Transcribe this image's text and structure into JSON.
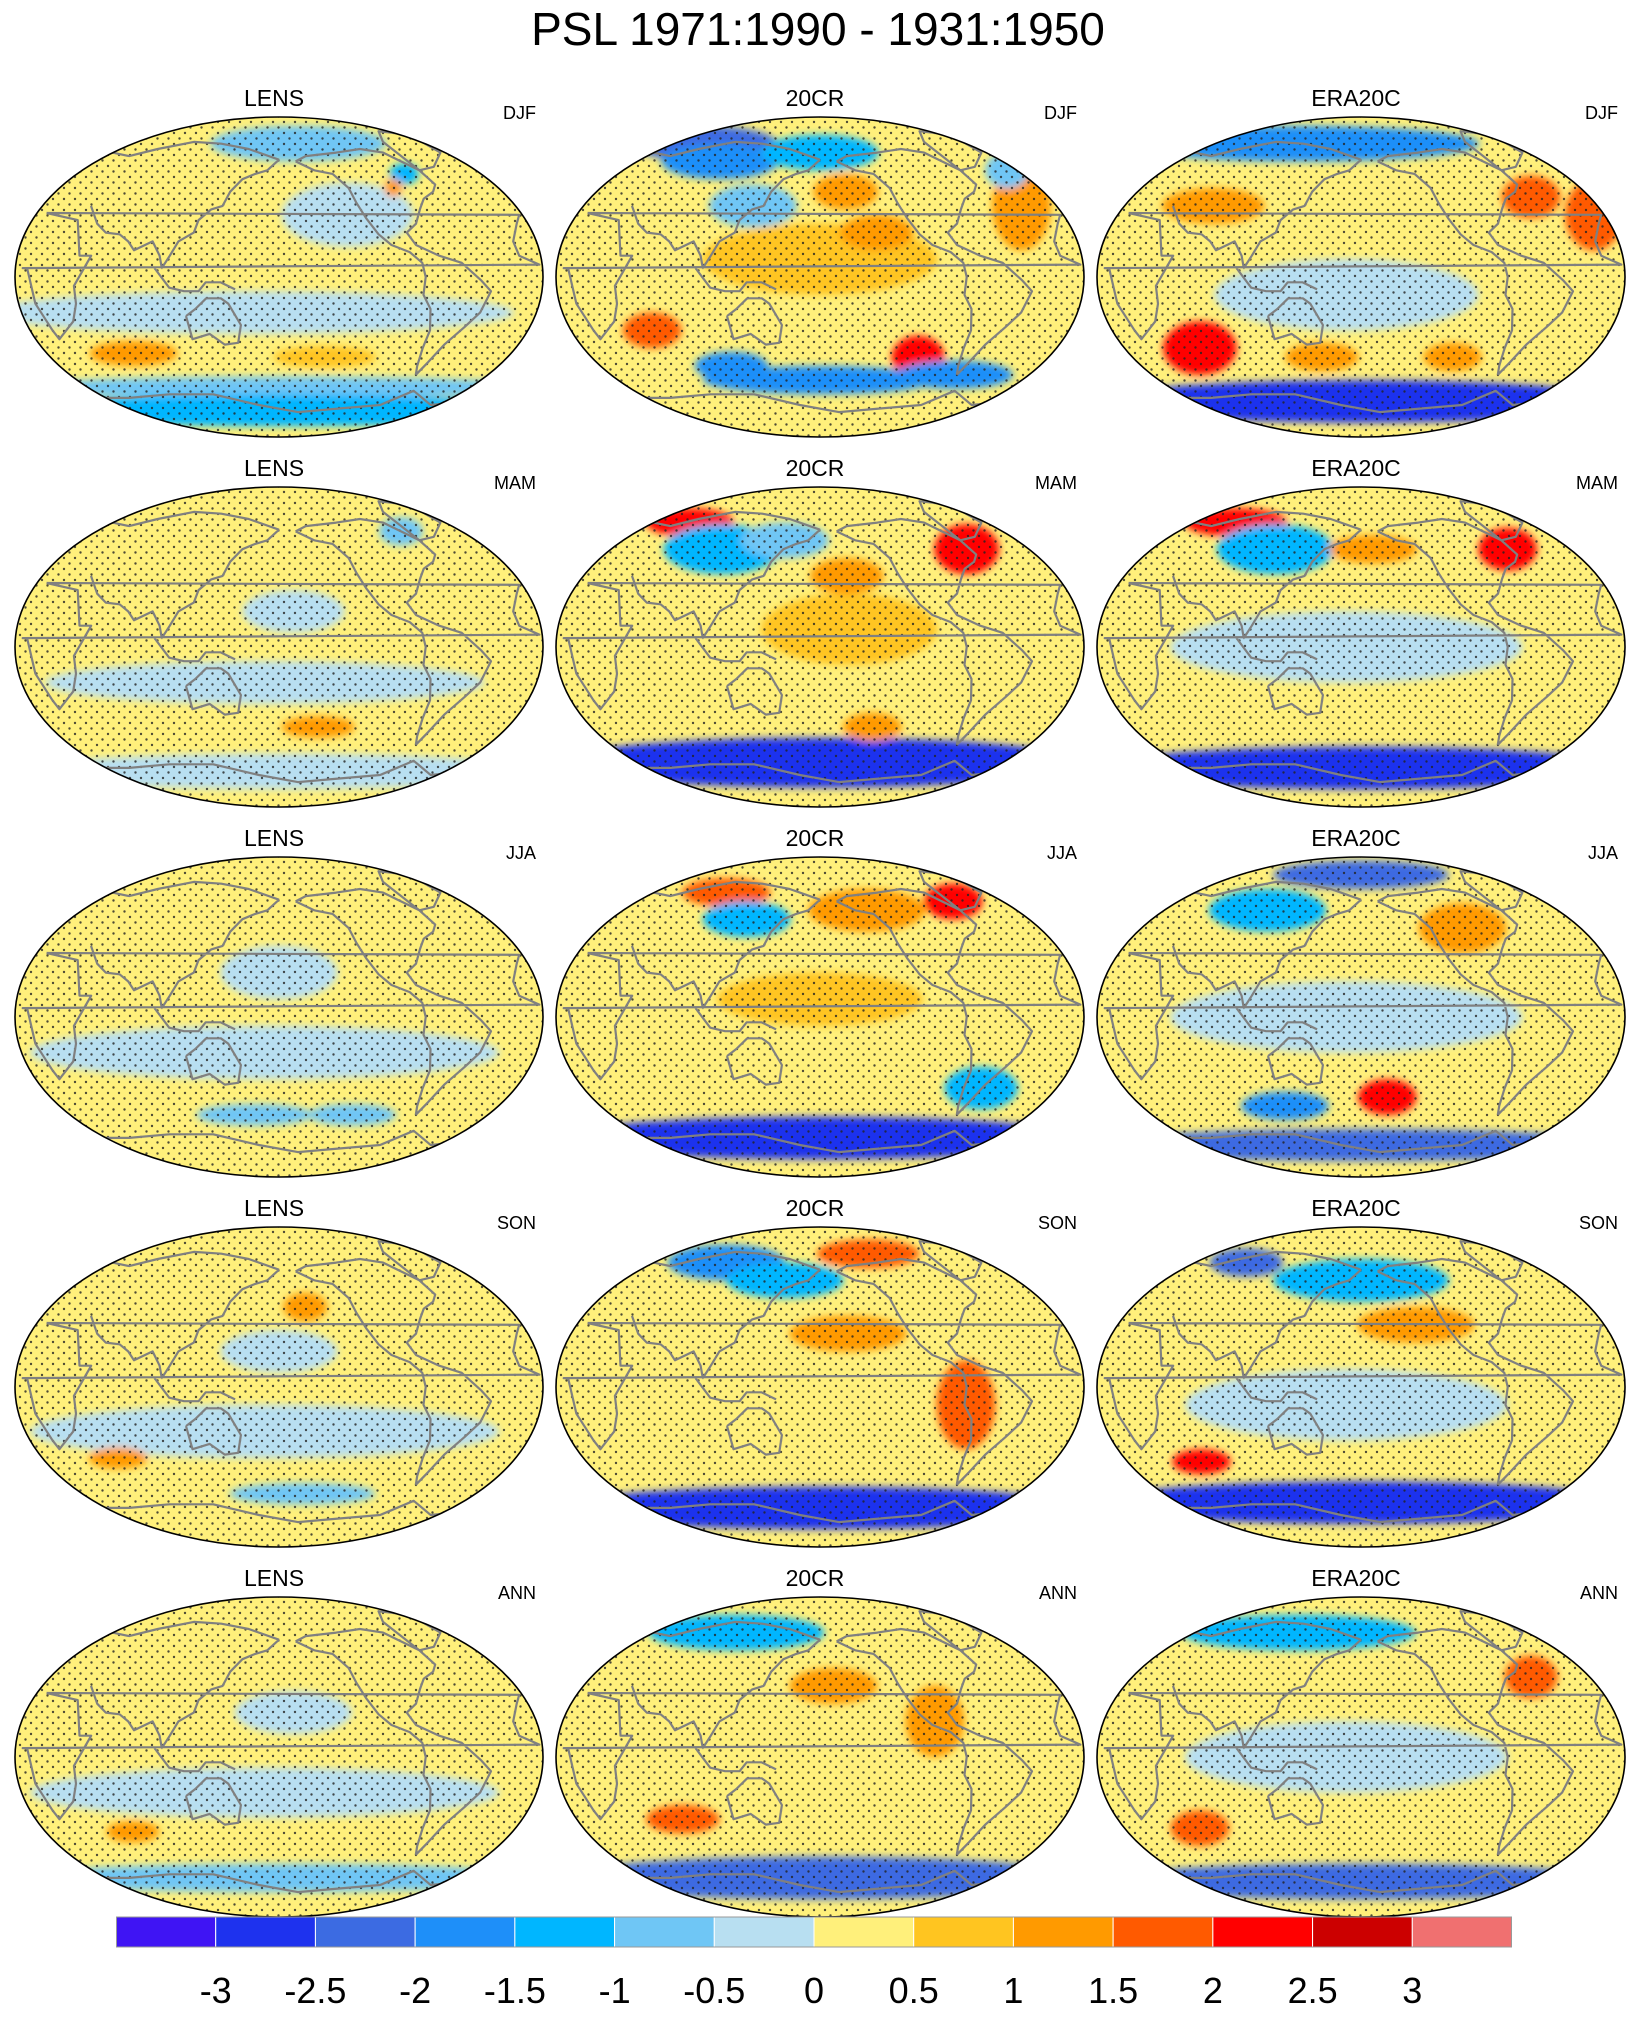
{
  "figure": {
    "title": "PSL 1971:1990 - 1931:1950"
  },
  "chart_data": {
    "type": "heatmap",
    "projection": "Robinson (global, Pacific-centered)",
    "title": "PSL 1971:1990 - 1931:1950",
    "rows": [
      "DJF",
      "MAM",
      "JJA",
      "SON",
      "ANN"
    ],
    "columns": [
      "LENS",
      "20CR",
      "ERA20C"
    ],
    "stippling": "dots over shaded field",
    "coastlines_color": "#808080",
    "colorbar": {
      "levels": [
        -3,
        -2.5,
        -2,
        -1.5,
        -1,
        -0.5,
        0,
        0.5,
        1,
        1.5,
        2,
        2.5,
        3
      ],
      "tick_labels": [
        "-3",
        "-2.5",
        "-2",
        "-1.5",
        "-1",
        "-0.5",
        "0",
        "0.5",
        "1",
        "1.5",
        "2",
        "2.5",
        "3"
      ],
      "colors": [
        "#3f14f4",
        "#1e32ee",
        "#3c6be2",
        "#1e8ff9",
        "#00b6ff",
        "#6fc6f5",
        "#b8dff1",
        "#fff07b",
        "#ffc520",
        "#ff9a00",
        "#ff5a00",
        "#ff0000",
        "#cc0000",
        "#f07070"
      ]
    },
    "panels": [
      {
        "row": "DJF",
        "model": "LENS",
        "features": [
          {
            "lon": 200,
            "lat": 75,
            "rx": 60,
            "ry": 10,
            "value": -0.6
          },
          {
            "lon": 230,
            "lat": 35,
            "rx": 45,
            "ry": 18,
            "value": -0.5
          },
          {
            "lon": 160,
            "lat": -20,
            "rx": 180,
            "ry": 12,
            "value": -0.5
          },
          {
            "lon": 70,
            "lat": -43,
            "rx": 30,
            "ry": 7,
            "value": 1.3
          },
          {
            "lon": 215,
            "lat": -45,
            "rx": 35,
            "ry": 6,
            "value": 0.9
          },
          {
            "lon": 180,
            "lat": -62,
            "rx": 180,
            "ry": 6,
            "value": -0.8
          },
          {
            "lon": 180,
            "lat": -75,
            "rx": 180,
            "ry": 9,
            "value": -1.2
          },
          {
            "lon": 285,
            "lat": 58,
            "rx": 10,
            "ry": 6,
            "value": -1.3
          },
          {
            "lon": 270,
            "lat": 50,
            "rx": 6,
            "ry": 5,
            "value": 1.3
          }
        ]
      },
      {
        "row": "DJF",
        "model": "20CR",
        "features": [
          {
            "lon": 60,
            "lat": 75,
            "rx": 50,
            "ry": 10,
            "value": -2.2
          },
          {
            "lon": 90,
            "lat": 65,
            "rx": 40,
            "ry": 10,
            "value": -1.8
          },
          {
            "lon": 180,
            "lat": 70,
            "rx": 40,
            "ry": 10,
            "value": -1.5
          },
          {
            "lon": 130,
            "lat": 40,
            "rx": 30,
            "ry": 12,
            "value": -1.0
          },
          {
            "lon": 200,
            "lat": 48,
            "rx": 22,
            "ry": 10,
            "value": 1.3
          },
          {
            "lon": 180,
            "lat": 10,
            "rx": 80,
            "ry": 20,
            "value": 0.9
          },
          {
            "lon": 220,
            "lat": 25,
            "rx": 25,
            "ry": 10,
            "value": 1.3
          },
          {
            "lon": 330,
            "lat": 40,
            "rx": 20,
            "ry": 25,
            "value": 1.4
          },
          {
            "lon": 340,
            "lat": 60,
            "rx": 15,
            "ry": 10,
            "value": -1.0
          },
          {
            "lon": 60,
            "lat": -30,
            "rx": 20,
            "ry": 10,
            "value": 1.6
          },
          {
            "lon": 255,
            "lat": -45,
            "rx": 18,
            "ry": 12,
            "value": 2.2
          },
          {
            "lon": 180,
            "lat": -58,
            "rx": 80,
            "ry": 8,
            "value": -1.8
          },
          {
            "lon": 110,
            "lat": -50,
            "rx": 25,
            "ry": 8,
            "value": -2.0
          },
          {
            "lon": 290,
            "lat": -55,
            "rx": 40,
            "ry": 8,
            "value": -1.8
          }
        ]
      },
      {
        "row": "DJF",
        "model": "ERA20C",
        "features": [
          {
            "lon": 120,
            "lat": 75,
            "rx": 120,
            "ry": 10,
            "value": -1.8
          },
          {
            "lon": 70,
            "lat": 40,
            "rx": 35,
            "ry": 10,
            "value": 1.2
          },
          {
            "lon": 310,
            "lat": 45,
            "rx": 20,
            "ry": 12,
            "value": 1.6
          },
          {
            "lon": 350,
            "lat": 35,
            "rx": 20,
            "ry": 20,
            "value": 1.5
          },
          {
            "lon": 170,
            "lat": -10,
            "rx": 90,
            "ry": 20,
            "value": -0.5
          },
          {
            "lon": 60,
            "lat": -40,
            "rx": 25,
            "ry": 15,
            "value": 2.4
          },
          {
            "lon": 150,
            "lat": -45,
            "rx": 25,
            "ry": 8,
            "value": 1.2
          },
          {
            "lon": 250,
            "lat": -45,
            "rx": 20,
            "ry": 8,
            "value": 1.2
          },
          {
            "lon": 180,
            "lat": -70,
            "rx": 180,
            "ry": 12,
            "value": -2.8
          }
        ]
      },
      {
        "row": "MAM",
        "model": "LENS",
        "features": [
          {
            "lon": 190,
            "lat": 20,
            "rx": 35,
            "ry": 12,
            "value": -0.5
          },
          {
            "lon": 170,
            "lat": -20,
            "rx": 150,
            "ry": 12,
            "value": -0.5
          },
          {
            "lon": 210,
            "lat": -45,
            "rx": 25,
            "ry": 6,
            "value": 1.2
          },
          {
            "lon": 180,
            "lat": -70,
            "rx": 180,
            "ry": 10,
            "value": -0.5
          },
          {
            "lon": 290,
            "lat": 65,
            "rx": 15,
            "ry": 8,
            "value": -1.0
          }
        ]
      },
      {
        "row": "MAM",
        "model": "20CR",
        "features": [
          {
            "lon": 55,
            "lat": 70,
            "rx": 30,
            "ry": 8,
            "value": 2.0
          },
          {
            "lon": 100,
            "lat": 55,
            "rx": 40,
            "ry": 14,
            "value": -1.5
          },
          {
            "lon": 150,
            "lat": 60,
            "rx": 30,
            "ry": 10,
            "value": -1.0
          },
          {
            "lon": 300,
            "lat": 55,
            "rx": 22,
            "ry": 14,
            "value": 2.3
          },
          {
            "lon": 200,
            "lat": 40,
            "rx": 25,
            "ry": 10,
            "value": 1.2
          },
          {
            "lon": 200,
            "lat": 10,
            "rx": 60,
            "ry": 20,
            "value": 0.8
          },
          {
            "lon": 180,
            "lat": -65,
            "rx": 180,
            "ry": 14,
            "value": -2.8
          },
          {
            "lon": 220,
            "lat": -45,
            "rx": 20,
            "ry": 8,
            "value": 1.4
          }
        ]
      },
      {
        "row": "MAM",
        "model": "ERA20C",
        "features": [
          {
            "lon": 60,
            "lat": 70,
            "rx": 35,
            "ry": 8,
            "value": 2.0
          },
          {
            "lon": 110,
            "lat": 55,
            "rx": 40,
            "ry": 14,
            "value": -1.5
          },
          {
            "lon": 190,
            "lat": 55,
            "rx": 30,
            "ry": 8,
            "value": 1.3
          },
          {
            "lon": 300,
            "lat": 55,
            "rx": 20,
            "ry": 12,
            "value": 2.2
          },
          {
            "lon": 170,
            "lat": 0,
            "rx": 120,
            "ry": 20,
            "value": -0.5
          },
          {
            "lon": 180,
            "lat": -68,
            "rx": 180,
            "ry": 12,
            "value": -2.8
          }
        ]
      },
      {
        "row": "JJA",
        "model": "LENS",
        "features": [
          {
            "lon": 180,
            "lat": 25,
            "rx": 40,
            "ry": 15,
            "value": -0.5
          },
          {
            "lon": 170,
            "lat": -20,
            "rx": 160,
            "ry": 15,
            "value": -0.5
          },
          {
            "lon": 160,
            "lat": -55,
            "rx": 40,
            "ry": 6,
            "value": -0.8
          },
          {
            "lon": 240,
            "lat": -55,
            "rx": 30,
            "ry": 6,
            "value": -0.8
          }
        ]
      },
      {
        "row": "JJA",
        "model": "20CR",
        "features": [
          {
            "lon": 90,
            "lat": 70,
            "rx": 30,
            "ry": 8,
            "value": 1.5
          },
          {
            "lon": 220,
            "lat": 60,
            "rx": 40,
            "ry": 12,
            "value": 1.3
          },
          {
            "lon": 300,
            "lat": 65,
            "rx": 20,
            "ry": 10,
            "value": 2.2
          },
          {
            "lon": 120,
            "lat": 55,
            "rx": 30,
            "ry": 10,
            "value": -1.2
          },
          {
            "lon": 180,
            "lat": 10,
            "rx": 70,
            "ry": 15,
            "value": 0.6
          },
          {
            "lon": 180,
            "lat": -68,
            "rx": 180,
            "ry": 12,
            "value": -2.8
          },
          {
            "lon": 300,
            "lat": -40,
            "rx": 25,
            "ry": 12,
            "value": -1.2
          }
        ]
      },
      {
        "row": "JJA",
        "model": "ERA20C",
        "features": [
          {
            "lon": 180,
            "lat": 80,
            "rx": 60,
            "ry": 8,
            "value": -2.5
          },
          {
            "lon": 100,
            "lat": 60,
            "rx": 40,
            "ry": 12,
            "value": -1.5
          },
          {
            "lon": 260,
            "lat": 50,
            "rx": 30,
            "ry": 14,
            "value": 1.2
          },
          {
            "lon": 170,
            "lat": 0,
            "rx": 120,
            "ry": 20,
            "value": -0.5
          },
          {
            "lon": 200,
            "lat": -45,
            "rx": 20,
            "ry": 10,
            "value": 2.3
          },
          {
            "lon": 120,
            "lat": -50,
            "rx": 30,
            "ry": 8,
            "value": -1.8
          },
          {
            "lon": 180,
            "lat": -72,
            "rx": 180,
            "ry": 9,
            "value": -2.3
          }
        ]
      },
      {
        "row": "SON",
        "model": "LENS",
        "features": [
          {
            "lon": 200,
            "lat": 45,
            "rx": 15,
            "ry": 8,
            "value": 1.2
          },
          {
            "lon": 180,
            "lat": 20,
            "rx": 40,
            "ry": 12,
            "value": -0.5
          },
          {
            "lon": 170,
            "lat": -25,
            "rx": 160,
            "ry": 15,
            "value": -0.5
          },
          {
            "lon": 60,
            "lat": -40,
            "rx": 20,
            "ry": 6,
            "value": 1.3
          },
          {
            "lon": 200,
            "lat": -60,
            "rx": 50,
            "ry": 6,
            "value": -0.8
          }
        ]
      },
      {
        "row": "SON",
        "model": "20CR",
        "features": [
          {
            "lon": 90,
            "lat": 70,
            "rx": 40,
            "ry": 10,
            "value": -1.6
          },
          {
            "lon": 230,
            "lat": 75,
            "rx": 35,
            "ry": 8,
            "value": 1.6
          },
          {
            "lon": 150,
            "lat": 60,
            "rx": 40,
            "ry": 10,
            "value": -1.2
          },
          {
            "lon": 200,
            "lat": 30,
            "rx": 40,
            "ry": 10,
            "value": 1.2
          },
          {
            "lon": 280,
            "lat": -10,
            "rx": 20,
            "ry": 25,
            "value": 1.6
          },
          {
            "lon": 180,
            "lat": -68,
            "rx": 180,
            "ry": 12,
            "value": -2.7
          }
        ]
      },
      {
        "row": "SON",
        "model": "ERA20C",
        "features": [
          {
            "lon": 70,
            "lat": 70,
            "rx": 25,
            "ry": 8,
            "value": -2.2
          },
          {
            "lon": 180,
            "lat": 60,
            "rx": 60,
            "ry": 12,
            "value": -1.2
          },
          {
            "lon": 220,
            "lat": 35,
            "rx": 40,
            "ry": 10,
            "value": 1.2
          },
          {
            "lon": 170,
            "lat": -10,
            "rx": 110,
            "ry": 20,
            "value": -0.5
          },
          {
            "lon": 60,
            "lat": -42,
            "rx": 20,
            "ry": 7,
            "value": 2.0
          },
          {
            "lon": 180,
            "lat": -65,
            "rx": 180,
            "ry": 12,
            "value": -2.6
          }
        ]
      },
      {
        "row": "ANN",
        "model": "LENS",
        "features": [
          {
            "lon": 190,
            "lat": 25,
            "rx": 40,
            "ry": 12,
            "value": -0.5
          },
          {
            "lon": 170,
            "lat": -20,
            "rx": 160,
            "ry": 14,
            "value": -0.5
          },
          {
            "lon": 70,
            "lat": -42,
            "rx": 18,
            "ry": 6,
            "value": 1.2
          },
          {
            "lon": 180,
            "lat": -68,
            "rx": 180,
            "ry": 8,
            "value": -0.8
          }
        ]
      },
      {
        "row": "ANN",
        "model": "20CR",
        "features": [
          {
            "lon": 100,
            "lat": 70,
            "rx": 60,
            "ry": 10,
            "value": -1.2
          },
          {
            "lon": 190,
            "lat": 40,
            "rx": 30,
            "ry": 10,
            "value": 1.2
          },
          {
            "lon": 260,
            "lat": 20,
            "rx": 20,
            "ry": 20,
            "value": 1.0
          },
          {
            "lon": 80,
            "lat": -35,
            "rx": 25,
            "ry": 8,
            "value": 1.5
          },
          {
            "lon": 180,
            "lat": -68,
            "rx": 180,
            "ry": 12,
            "value": -2.5
          }
        ]
      },
      {
        "row": "ANN",
        "model": "ERA20C",
        "features": [
          {
            "lon": 120,
            "lat": 70,
            "rx": 80,
            "ry": 10,
            "value": -1.3
          },
          {
            "lon": 310,
            "lat": 45,
            "rx": 18,
            "ry": 12,
            "value": 1.5
          },
          {
            "lon": 170,
            "lat": 0,
            "rx": 110,
            "ry": 20,
            "value": -0.5
          },
          {
            "lon": 60,
            "lat": -40,
            "rx": 20,
            "ry": 10,
            "value": 1.8
          },
          {
            "lon": 180,
            "lat": -70,
            "rx": 180,
            "ry": 10,
            "value": -2.5
          }
        ]
      }
    ]
  }
}
